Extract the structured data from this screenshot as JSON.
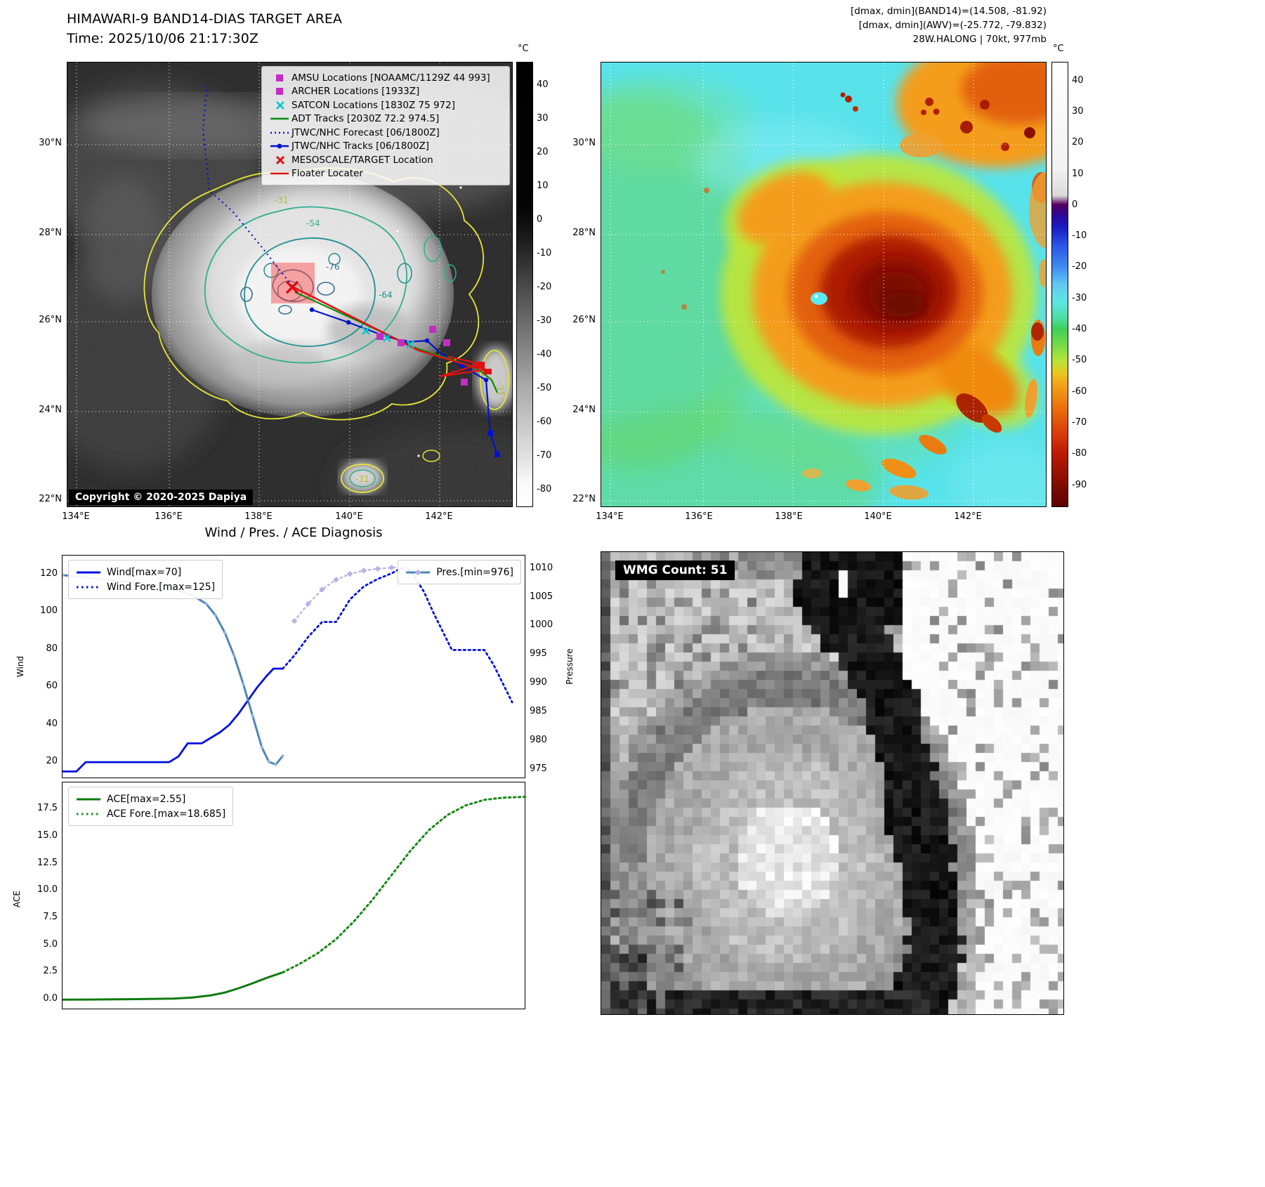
{
  "colors": {
    "amsu_magenta": "#c42cc4",
    "satcon_cyan": "#00c8c8",
    "adt_green": "#0a8a0a",
    "jtwc_blue": "#0013cc",
    "target_red": "#dd1111",
    "wind_blue": "#0010e0",
    "pressure_steelblue": "#4c87b9",
    "pressure_fore_lavender": "#b7aee6",
    "ace_green": "#0f7a0f",
    "contour_yellow": "#e6e636",
    "contour_teal": "#2fae8f",
    "contour_dark_teal": "#1f8f8f",
    "contour_slate": "#34708e"
  },
  "panel_tl": {
    "title": "HIMAWARI-9 BAND14-DIAS TARGET AREA",
    "subtitle": "Time: 2025/10/06 21:17:30Z",
    "copyright": "Copyright © 2020-2025 Dapiya",
    "xticks": [
      "134°E",
      "136°E",
      "138°E",
      "140°E",
      "142°E"
    ],
    "yticks": [
      "30°N",
      "28°N",
      "26°N",
      "24°N",
      "22°N"
    ],
    "colorbar": {
      "unit": "°C",
      "ticks": [
        "40",
        "30",
        "20",
        "10",
        "0",
        "-10",
        "-20",
        "-30",
        "-40",
        "-50",
        "-60",
        "-70",
        "-80"
      ]
    },
    "contour_labels": [
      "-31",
      "-54",
      "-76",
      "-64",
      "-31",
      "-31"
    ],
    "legend": [
      {
        "label": "AMSU Locations [NOAAMC/1129Z 44 993]",
        "glyph": "square",
        "color": "#c42cc4"
      },
      {
        "label": "ARCHER Locations [1933Z]",
        "glyph": "square",
        "color": "#c42cc4"
      },
      {
        "label": "SATCON Locations [1830Z 75 972]",
        "glyph": "x",
        "color": "#00c8c8"
      },
      {
        "label": "ADT Tracks [2030Z 72.2 974.5]",
        "glyph": "line",
        "color": "#0a8a0a"
      },
      {
        "label": "JTWC/NHC Forecast [06/1800Z]",
        "glyph": "dotted-line",
        "color": "#0013cc"
      },
      {
        "label": "JTWC/NHC Tracks [06/1800Z]",
        "glyph": "line-dot",
        "color": "#0013cc"
      },
      {
        "label": "MESOSCALE/TARGET Location",
        "glyph": "x",
        "color": "#dd1111"
      },
      {
        "label": "Floater Locater",
        "glyph": "line",
        "color": "#dd1111"
      }
    ]
  },
  "panel_tr": {
    "header_lines": [
      "[dmax, dmin](BAND14)=(14.508, -81.92)",
      "[dmax, dmin](AWV)=(-25.772, -79.832)",
      "28W.HALONG | 70kt, 977mb"
    ],
    "xticks": [
      "134°E",
      "136°E",
      "138°E",
      "140°E",
      "142°E"
    ],
    "yticks": [
      "30°N",
      "28°N",
      "26°N",
      "24°N",
      "22°N"
    ],
    "colorbar": {
      "unit": "°C",
      "ticks": [
        "40",
        "30",
        "20",
        "10",
        "0",
        "-10",
        "-20",
        "-30",
        "-40",
        "-50",
        "-60",
        "-70",
        "-80",
        "-90"
      ]
    }
  },
  "panel_br": {
    "label": "WMG Count: 51"
  },
  "chart_data": [
    {
      "type": "line",
      "title": "Wind / Pres. / ACE Diagnosis",
      "ylabel_left": "Wind",
      "ylabel_right": "Pressure",
      "xlim": [
        0,
        100
      ],
      "ylim_left": [
        11,
        130.5
      ],
      "ylim_right": [
        973.5,
        1012.4
      ],
      "yticks_left": [
        "20",
        "40",
        "60",
        "80",
        "100",
        "120"
      ],
      "yticks_right": [
        "975",
        "980",
        "985",
        "990",
        "995",
        "1000",
        "1005",
        "1010"
      ],
      "legend_left": [
        "Wind[max=70]",
        "Wind Fore.[max=125]"
      ],
      "legend_right": [
        "Pres.[min=976]"
      ],
      "grid": false,
      "series": [
        {
          "name": "Wind[max=70]",
          "axis": "left",
          "style": "solid",
          "color": "#0010e0",
          "width": 2.8,
          "x": [
            0,
            3,
            5,
            23,
            25,
            27,
            30,
            32,
            34,
            36,
            38,
            40,
            42,
            44,
            45.5,
            47.5
          ],
          "y": [
            15,
            15,
            20,
            20,
            23,
            30,
            30,
            33,
            36,
            40,
            46,
            53,
            60,
            66,
            70,
            70
          ]
        },
        {
          "name": "Wind Fore.[max=125]",
          "axis": "left",
          "style": "dotted",
          "color": "#0010e0",
          "width": 2.8,
          "x": [
            47.5,
            50,
            53,
            56,
            59,
            62,
            65,
            68,
            71,
            74,
            76,
            78,
            80,
            82,
            84,
            91,
            93,
            95,
            97
          ],
          "y": [
            70,
            77,
            87,
            95,
            95,
            107,
            114,
            118,
            121,
            125,
            119,
            111,
            100,
            90,
            80,
            80,
            72,
            62,
            52
          ]
        },
        {
          "name": "Pres.[min=976]",
          "axis": "right",
          "style": "solid",
          "color": "#4c87b9",
          "width": 3,
          "markers": true,
          "msize": 4,
          "mcolor": "#a9b6e2",
          "mopacity": 0.9,
          "x": [
            0,
            6,
            12,
            18,
            24,
            28,
            31,
            33,
            35,
            37,
            39,
            41,
            43,
            44.5,
            46,
            47.5
          ],
          "y": [
            1009,
            1008.5,
            1008,
            1007.5,
            1006.5,
            1005.5,
            1004,
            1002,
            999,
            995,
            990,
            984.5,
            979,
            976.5,
            976,
            977.5
          ]
        },
        {
          "name": "Pres. Fore.",
          "axis": "right",
          "style": "dotted",
          "color": "#b7aee6",
          "width": 2.2,
          "markers": true,
          "msize": 6,
          "mcolor": "#b7aee6",
          "mopacity": 0.95,
          "x": [
            50,
            53,
            56,
            59,
            62,
            65,
            68,
            71,
            74
          ],
          "y": [
            1001,
            1004,
            1006.5,
            1008.2,
            1009.2,
            1009.8,
            1010.1,
            1010.3,
            1010.4
          ]
        }
      ]
    },
    {
      "type": "line",
      "title": "",
      "ylabel_left": "ACE",
      "xlim": [
        0,
        100
      ],
      "ylim_left": [
        -0.9,
        20.0
      ],
      "yticks_left": [
        "0.0",
        "2.5",
        "5.0",
        "7.5",
        "10.0",
        "12.5",
        "15.0",
        "17.5"
      ],
      "legend_left": [
        "ACE[max=2.55]",
        "ACE Fore.[max=18.685]"
      ],
      "grid": false,
      "series": [
        {
          "name": "ACE[max=2.55]",
          "axis": "left",
          "style": "solid",
          "color": "#0f7a0f",
          "width": 3,
          "x": [
            0,
            8,
            16,
            24,
            28,
            32,
            35,
            38,
            41,
            44,
            47.5
          ],
          "y": [
            0.05,
            0.07,
            0.1,
            0.15,
            0.25,
            0.45,
            0.7,
            1.1,
            1.55,
            2.05,
            2.55
          ]
        },
        {
          "name": "ACE Fore.[max=18.685]",
          "axis": "left",
          "style": "dotted",
          "color": "#158915",
          "width": 3,
          "x": [
            47.5,
            51,
            55,
            59,
            63,
            67,
            71,
            75,
            79,
            83,
            87,
            91,
            95,
            100
          ],
          "y": [
            2.55,
            3.3,
            4.3,
            5.6,
            7.3,
            9.3,
            11.5,
            13.7,
            15.6,
            17.0,
            17.9,
            18.4,
            18.6,
            18.685
          ]
        }
      ]
    }
  ]
}
